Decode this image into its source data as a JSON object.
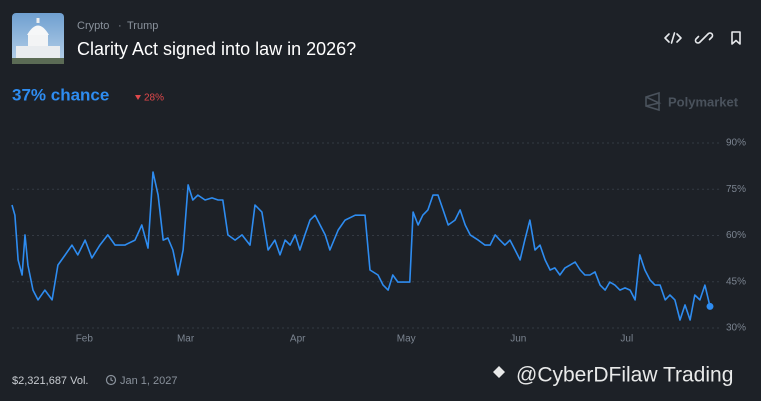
{
  "header": {
    "tags": [
      "Crypto",
      "Trump"
    ],
    "title": "Clarity Act signed into law in 2026?",
    "chance": "37% chance",
    "change": "28%",
    "brand": "Polymarket"
  },
  "footer": {
    "volume": "$2,321,687 Vol.",
    "end_date": "Jan 1, 2027",
    "watermark": "@CyberDFilaw Trading"
  },
  "chart_data": {
    "type": "line",
    "color": "#2e8cf0",
    "grid": true,
    "xlim": [
      12,
      205
    ],
    "xticks": [
      {
        "value": 32,
        "label": "Feb"
      },
      {
        "value": 60,
        "label": "Mar"
      },
      {
        "value": 91,
        "label": "Apr"
      },
      {
        "value": 121,
        "label": "May"
      },
      {
        "value": 152,
        "label": "Jun"
      },
      {
        "value": 182,
        "label": "Jul"
      }
    ],
    "ylim": [
      30,
      90
    ],
    "yticks": [
      {
        "value": 30,
        "label": "30%"
      },
      {
        "value": 45,
        "label": "45%"
      },
      {
        "value": 60,
        "label": "60%"
      },
      {
        "value": 75,
        "label": "75%"
      },
      {
        "value": 90,
        "label": "90%"
      }
    ],
    "x": [
      12,
      12.8,
      13.7,
      14.8,
      15.6,
      16.4,
      17.8,
      19.2,
      21.1,
      23.1,
      24.7,
      26.7,
      28.6,
      30.2,
      32.2,
      34.1,
      36.3,
      38.5,
      40.5,
      43.2,
      46,
      47.9,
      49.6,
      51,
      52.4,
      53.8,
      55.1,
      56.5,
      57.9,
      59.3,
      60.7,
      62,
      63.4,
      65.4,
      67.3,
      69,
      70.3,
      71.7,
      73.7,
      75.6,
      77.8,
      79.2,
      81.1,
      82.8,
      84.7,
      86.1,
      87.5,
      88.9,
      90.3,
      91.6,
      93,
      94.4,
      95.8,
      97.2,
      98.6,
      99.9,
      102.2,
      104.1,
      106.9,
      109.6,
      111,
      113.2,
      114.6,
      116,
      117.3,
      118.7,
      122,
      122.9,
      124.3,
      125.6,
      127,
      128.4,
      129.8,
      131.2,
      132.6,
      134.5,
      135.9,
      137.3,
      138.7,
      140.9,
      142.8,
      144.2,
      145.6,
      146.9,
      148.3,
      149.7,
      151.1,
      152.5,
      153.8,
      155.2,
      156.6,
      158,
      159.4,
      160.8,
      162.1,
      163.5,
      164.9,
      166.3,
      167.7,
      169.1,
      170.4,
      171.8,
      173.2,
      174.6,
      176,
      177.3,
      178.7,
      180.1,
      181.5,
      182.9,
      184.3,
      185.6,
      187,
      188.4,
      189.8,
      191.2,
      192.6,
      193.9,
      195.3,
      196.7,
      198.1,
      199.5,
      200.8,
      202.2,
      203.6,
      205
    ],
    "values": [
      69.9,
      66.6,
      52.1,
      47.2,
      60.2,
      50.4,
      42.3,
      39.1,
      42.3,
      39.1,
      50.4,
      53.7,
      56.9,
      53.7,
      58.5,
      52.7,
      56.9,
      60.2,
      56.9,
      56.9,
      58.5,
      63.4,
      55.9,
      80.6,
      73.1,
      58.5,
      59.2,
      55.3,
      47.2,
      55.3,
      76.4,
      71.5,
      73.1,
      71.5,
      72.2,
      71.5,
      71.5,
      60.2,
      58.5,
      60.2,
      56.9,
      69.9,
      67.6,
      55.3,
      58.5,
      53.7,
      58.5,
      56.9,
      60.2,
      55.3,
      60.2,
      65,
      66.6,
      63.4,
      60.2,
      55.3,
      61.8,
      65,
      66.6,
      66.6,
      48.8,
      47.2,
      43.9,
      42.3,
      47.2,
      44.9,
      44.9,
      67.6,
      63.4,
      66.6,
      68.3,
      73.1,
      73.1,
      68.3,
      63.4,
      65,
      68.3,
      63.4,
      60.2,
      58.5,
      56.9,
      56.9,
      60.2,
      58.5,
      56.9,
      58.5,
      55.3,
      52.1,
      58.5,
      65,
      55.3,
      56.9,
      52.1,
      48.8,
      49.5,
      47.2,
      49.5,
      50.4,
      51.4,
      48.8,
      47.2,
      47.2,
      48.2,
      43.9,
      42.3,
      44.9,
      43.9,
      42.3,
      43,
      42.3,
      39.1,
      53.7,
      48.8,
      45.6,
      43.9,
      43.9,
      39.1,
      40.7,
      39.1,
      32.6,
      37.5,
      32.6,
      40.7,
      39.1,
      43.9,
      37
    ]
  }
}
